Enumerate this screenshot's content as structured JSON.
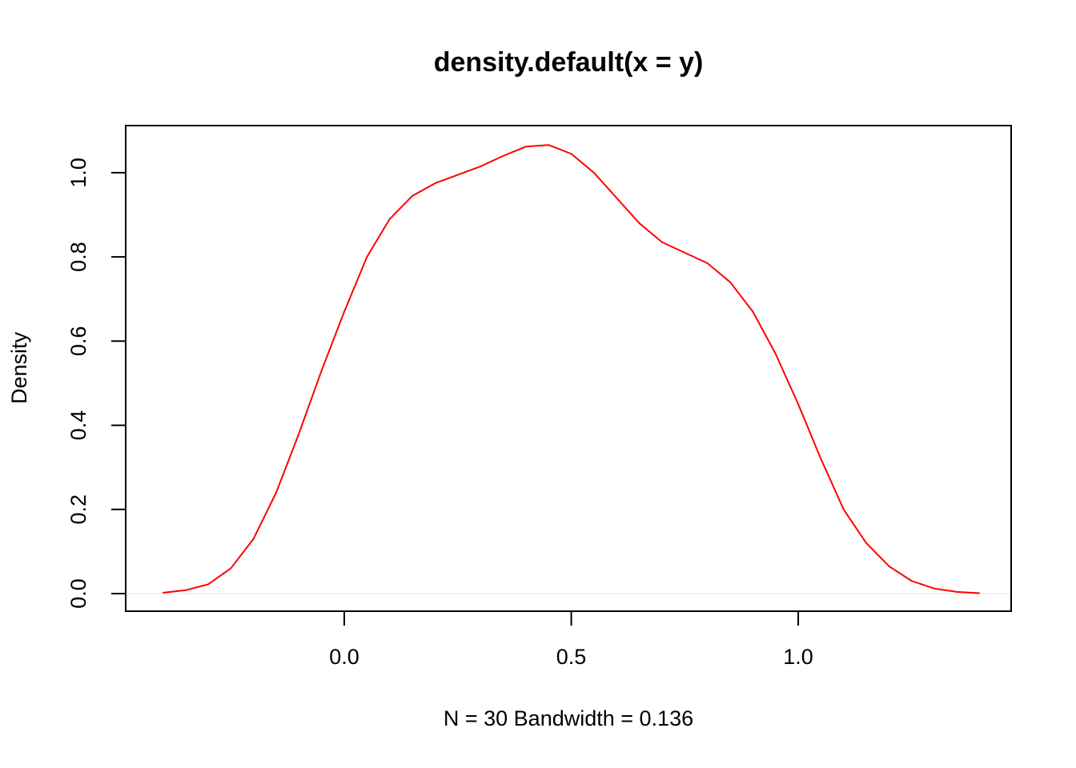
{
  "chart_data": {
    "type": "line",
    "title": "density.default(x = y)",
    "x_label": "N = 30   Bandwidth = 0.136",
    "y_label": "Density",
    "x": [
      -0.4,
      -0.35,
      -0.3,
      -0.25,
      -0.2,
      -0.15,
      -0.1,
      -0.05,
      0.0,
      0.05,
      0.1,
      0.15,
      0.2,
      0.25,
      0.3,
      0.35,
      0.4,
      0.45,
      0.5,
      0.55,
      0.6,
      0.65,
      0.7,
      0.75,
      0.8,
      0.85,
      0.9,
      0.95,
      1.0,
      1.05,
      1.1,
      1.15,
      1.2,
      1.25,
      1.3,
      1.35,
      1.4
    ],
    "values": [
      0.002,
      0.008,
      0.022,
      0.06,
      0.13,
      0.24,
      0.38,
      0.53,
      0.67,
      0.8,
      0.89,
      0.945,
      0.975,
      0.995,
      1.015,
      1.04,
      1.062,
      1.066,
      1.045,
      1.0,
      0.94,
      0.88,
      0.835,
      0.81,
      0.785,
      0.74,
      0.67,
      0.57,
      0.45,
      0.32,
      0.2,
      0.12,
      0.065,
      0.03,
      0.012,
      0.004,
      0.001
    ],
    "color": "#ff0000",
    "hline": 0,
    "hline_color": "#eeeeee",
    "xlim": [
      -0.4815,
      1.469
    ],
    "ylim": [
      -0.0418,
      1.112
    ],
    "xticks": [
      {
        "value": 0,
        "label": "0.0"
      },
      {
        "value": 0.5,
        "label": "0.5"
      },
      {
        "value": 1,
        "label": "1.0"
      }
    ],
    "yticks": [
      {
        "value": 0,
        "label": "0.0"
      },
      {
        "value": 0.2,
        "label": "0.2"
      },
      {
        "value": 0.4,
        "label": "0.4"
      },
      {
        "value": 0.6,
        "label": "0.6"
      },
      {
        "value": 0.8,
        "label": "0.8"
      },
      {
        "value": 1,
        "label": "1.0"
      }
    ]
  }
}
